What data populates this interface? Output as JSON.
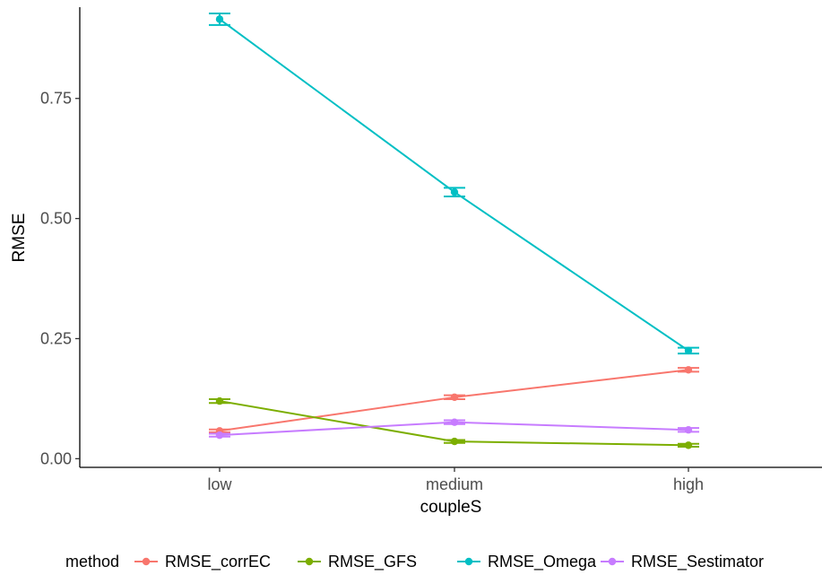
{
  "chart_data": {
    "type": "line",
    "title": "",
    "xlabel": "coupleS",
    "ylabel": "RMSE",
    "categories": [
      "low",
      "medium",
      "high"
    ],
    "ylim": [
      -0.018,
      0.94
    ],
    "yticks": [
      0.0,
      0.25,
      0.5,
      0.75
    ],
    "ytick_labels": [
      "0.00",
      "0.25",
      "0.50",
      "0.75"
    ],
    "grid": false,
    "legend": {
      "title": "method",
      "position": "bottom"
    },
    "series": [
      {
        "name": "RMSE_corrEC",
        "color": "#F8766D",
        "values": [
          0.058,
          0.128,
          0.185
        ],
        "errors": [
          0.003,
          0.004,
          0.004
        ]
      },
      {
        "name": "RMSE_GFS",
        "color": "#7CAE00",
        "values": [
          0.12,
          0.036,
          0.028
        ],
        "errors": [
          0.004,
          0.003,
          0.003
        ]
      },
      {
        "name": "RMSE_Omega",
        "color": "#00BFC4",
        "values": [
          0.915,
          0.555,
          0.225
        ],
        "errors": [
          0.012,
          0.009,
          0.006
        ]
      },
      {
        "name": "RMSE_Sestimator",
        "color": "#C77CFF",
        "values": [
          0.049,
          0.076,
          0.06
        ],
        "errors": [
          0.003,
          0.004,
          0.004
        ]
      }
    ]
  }
}
